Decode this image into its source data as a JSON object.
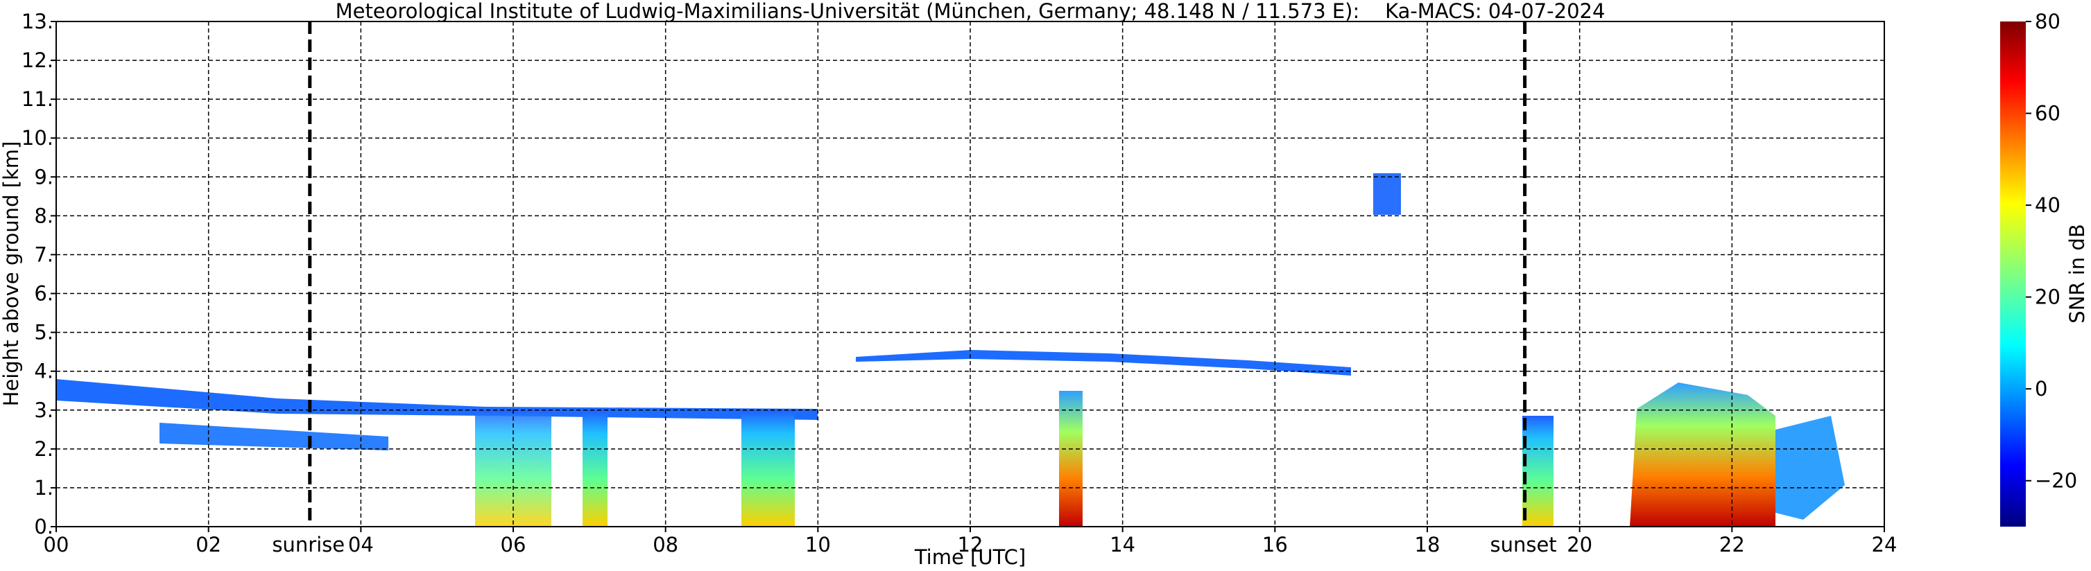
{
  "chart_data": {
    "type": "time-height",
    "title": "Meteorological Institute of Ludwig-Maximilians-Universität (München, Germany; 48.148 N / 11.573 E):    Ka-MACS: 04-07-2024",
    "xlabel": "Time [UTC]",
    "ylabel": "Height above ground [km]",
    "xlim": [
      0,
      24
    ],
    "ylim": [
      0,
      13
    ],
    "xticks": [
      {
        "value": 0,
        "label": "00"
      },
      {
        "value": 2,
        "label": "02"
      },
      {
        "value": 4,
        "label": "04"
      },
      {
        "value": 6,
        "label": "06"
      },
      {
        "value": 8,
        "label": "08"
      },
      {
        "value": 10,
        "label": "10"
      },
      {
        "value": 12,
        "label": "12"
      },
      {
        "value": 14,
        "label": "14"
      },
      {
        "value": 16,
        "label": "16"
      },
      {
        "value": 18,
        "label": "18"
      },
      {
        "value": 20,
        "label": "20"
      },
      {
        "value": 22,
        "label": "22"
      },
      {
        "value": 24,
        "label": "24"
      }
    ],
    "yticks": [
      {
        "value": 0,
        "label": "0."
      },
      {
        "value": 1,
        "label": "1."
      },
      {
        "value": 2,
        "label": "2."
      },
      {
        "value": 3,
        "label": "3."
      },
      {
        "value": 4,
        "label": "4."
      },
      {
        "value": 5,
        "label": "5."
      },
      {
        "value": 6,
        "label": "6."
      },
      {
        "value": 7,
        "label": "7."
      },
      {
        "value": 8,
        "label": "8."
      },
      {
        "value": 9,
        "label": "9."
      },
      {
        "value": 10,
        "label": "10."
      },
      {
        "value": 11,
        "label": "11."
      },
      {
        "value": 12,
        "label": "12."
      },
      {
        "value": 13,
        "label": "13."
      }
    ],
    "grid": true,
    "annotations": [
      {
        "text": "sunrise",
        "x": 3.33
      },
      {
        "text": "sunset",
        "x": 19.28
      }
    ],
    "colorbar": {
      "label": "SNR in dB",
      "lim": [
        -30,
        80
      ],
      "ticks": [
        {
          "value": -20,
          "label": "−20"
        },
        0,
        20,
        40,
        60,
        80
      ]
    }
  }
}
